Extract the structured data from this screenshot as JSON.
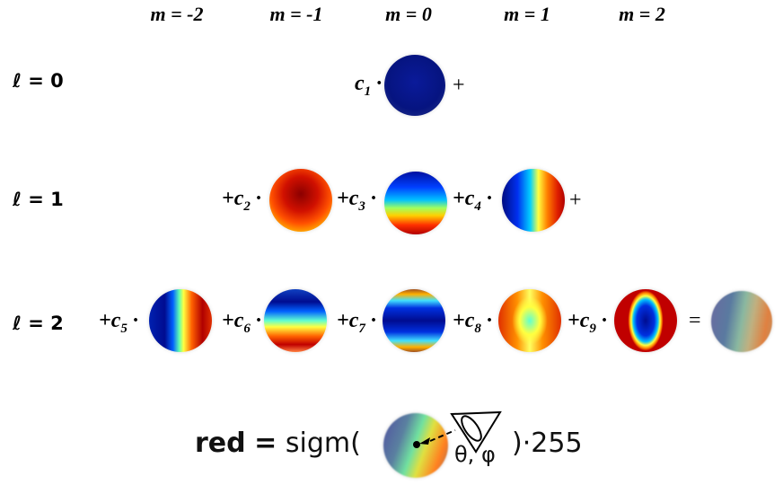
{
  "m_headers": [
    "m = -2",
    "m = -1",
    "m = 0",
    "m = 1",
    "m = 2"
  ],
  "l_labels": [
    "ℓ = 0",
    "ℓ = 1",
    "ℓ = 2"
  ],
  "coefficients": [
    "c",
    "c",
    "c",
    "c",
    "c",
    "c",
    "c",
    "c",
    "c"
  ],
  "subscripts": [
    "1",
    "2",
    "3",
    "4",
    "5",
    "6",
    "7",
    "8",
    "9"
  ],
  "operators": {
    "plus": "+",
    "dot": "·",
    "equals": "="
  },
  "formula": {
    "lhs": "red",
    "equals": "=",
    "func": "sigm(",
    "close": ")",
    "times": "·",
    "scale": "255",
    "angles": "θ, φ"
  },
  "colormap": [
    "#00008b",
    "#0000ff",
    "#00ffff",
    "#ffff00",
    "#ff0000",
    "#8b0000"
  ]
}
